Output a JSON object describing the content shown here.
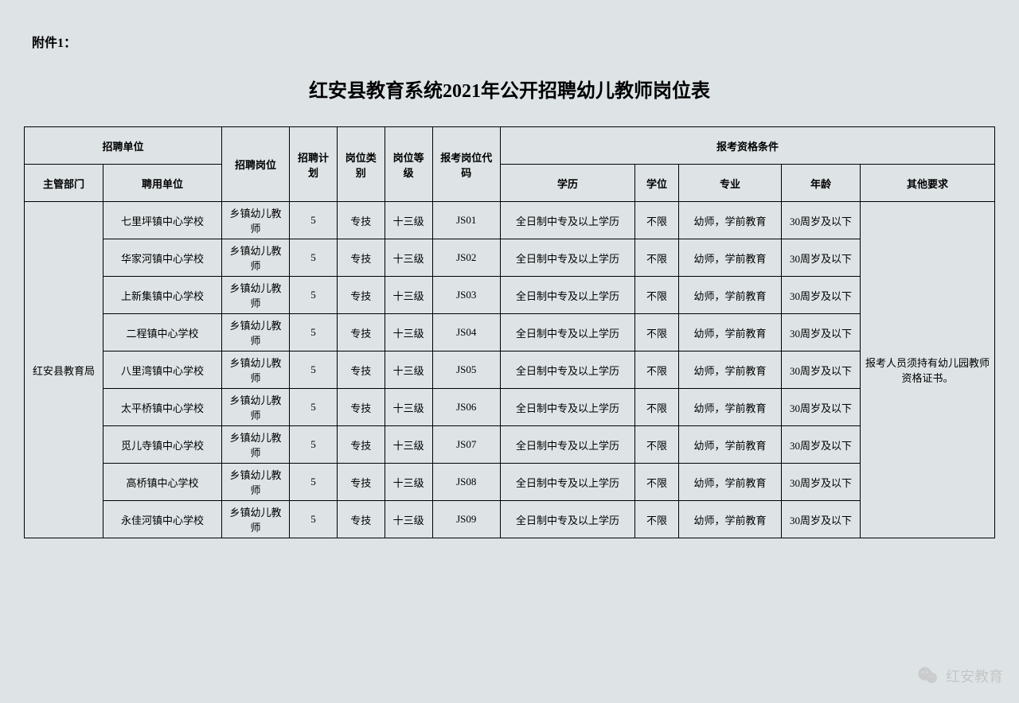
{
  "attachment_label": "附件1：",
  "title": "红安县教育系统2021年公开招聘幼儿教师岗位表",
  "headers": {
    "recruit_unit": "招聘单位",
    "recruit_post": "招聘岗位",
    "recruit_plan": "招聘计划",
    "post_category": "岗位类别",
    "post_grade": "岗位等级",
    "exam_code": "报考岗位代码",
    "qualification": "报考资格条件",
    "department": "主管部门",
    "employer": "聘用单位",
    "education": "学历",
    "degree": "学位",
    "major": "专业",
    "age": "年龄",
    "other": "其他要求"
  },
  "department_value": "红安县教育局",
  "other_requirement": "报考人员须持有幼儿园教师资格证书。",
  "rows": [
    {
      "employer": "七里坪镇中心学校",
      "post": "乡镇幼儿教师",
      "plan": "5",
      "category": "专技",
      "grade": "十三级",
      "code": "JS01",
      "education": "全日制中专及以上学历",
      "degree": "不限",
      "major": "幼师，学前教育",
      "age": "30周岁及以下"
    },
    {
      "employer": "华家河镇中心学校",
      "post": "乡镇幼儿教师",
      "plan": "5",
      "category": "专技",
      "grade": "十三级",
      "code": "JS02",
      "education": "全日制中专及以上学历",
      "degree": "不限",
      "major": "幼师，学前教育",
      "age": "30周岁及以下"
    },
    {
      "employer": "上新集镇中心学校",
      "post": "乡镇幼儿教师",
      "plan": "5",
      "category": "专技",
      "grade": "十三级",
      "code": "JS03",
      "education": "全日制中专及以上学历",
      "degree": "不限",
      "major": "幼师，学前教育",
      "age": "30周岁及以下"
    },
    {
      "employer": "二程镇中心学校",
      "post": "乡镇幼儿教师",
      "plan": "5",
      "category": "专技",
      "grade": "十三级",
      "code": "JS04",
      "education": "全日制中专及以上学历",
      "degree": "不限",
      "major": "幼师，学前教育",
      "age": "30周岁及以下"
    },
    {
      "employer": "八里湾镇中心学校",
      "post": "乡镇幼儿教师",
      "plan": "5",
      "category": "专技",
      "grade": "十三级",
      "code": "JS05",
      "education": "全日制中专及以上学历",
      "degree": "不限",
      "major": "幼师，学前教育",
      "age": "30周岁及以下"
    },
    {
      "employer": "太平桥镇中心学校",
      "post": "乡镇幼儿教师",
      "plan": "5",
      "category": "专技",
      "grade": "十三级",
      "code": "JS06",
      "education": "全日制中专及以上学历",
      "degree": "不限",
      "major": "幼师，学前教育",
      "age": "30周岁及以下"
    },
    {
      "employer": "觅儿寺镇中心学校",
      "post": "乡镇幼儿教师",
      "plan": "5",
      "category": "专技",
      "grade": "十三级",
      "code": "JS07",
      "education": "全日制中专及以上学历",
      "degree": "不限",
      "major": "幼师，学前教育",
      "age": "30周岁及以下"
    },
    {
      "employer": "高桥镇中心学校",
      "post": "乡镇幼儿教师",
      "plan": "5",
      "category": "专技",
      "grade": "十三级",
      "code": "JS08",
      "education": "全日制中专及以上学历",
      "degree": "不限",
      "major": "幼师，学前教育",
      "age": "30周岁及以下"
    },
    {
      "employer": "永佳河镇中心学校",
      "post": "乡镇幼儿教师",
      "plan": "5",
      "category": "专技",
      "grade": "十三级",
      "code": "JS09",
      "education": "全日制中专及以上学历",
      "degree": "不限",
      "major": "幼师，学前教育",
      "age": "30周岁及以下"
    }
  ],
  "watermark_text": "红安教育",
  "colors": {
    "background": "#dee4e6",
    "border": "#000000",
    "text": "#000000",
    "watermark": "#bfbfbf"
  },
  "column_widths": {
    "department": "90px",
    "employer": "140px",
    "post": "110px",
    "plan": "44px",
    "category": "44px",
    "grade": "50px",
    "code": "54px",
    "education": "160px",
    "degree": "46px",
    "major": "120px",
    "age": "90px",
    "other": "160px"
  }
}
